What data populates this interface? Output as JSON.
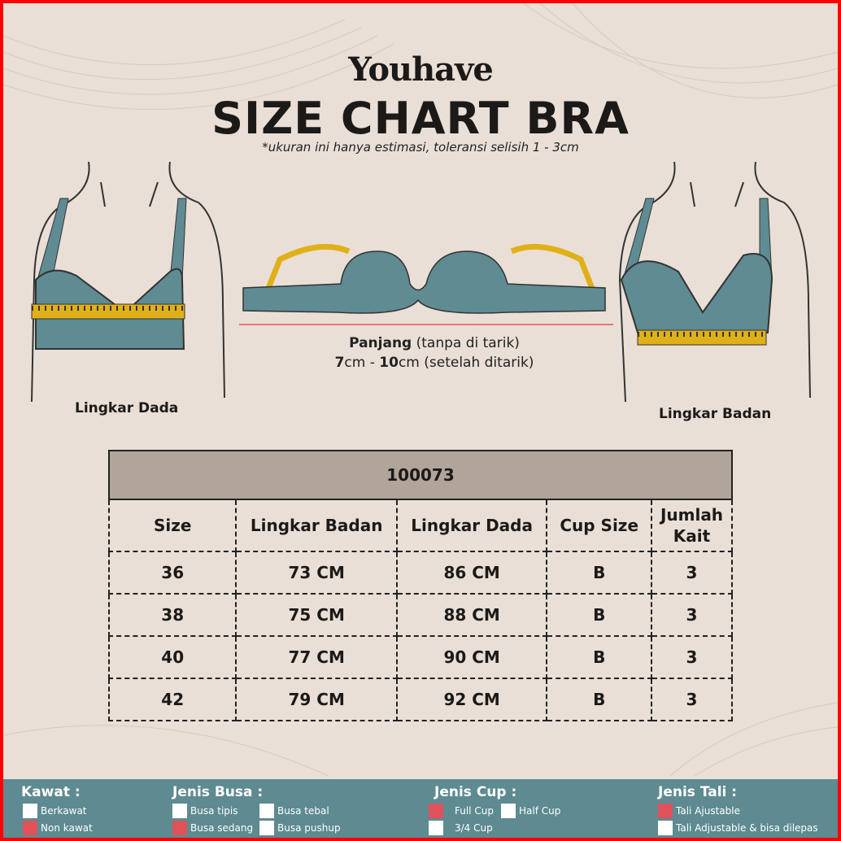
{
  "header": {
    "brand": "Youhave",
    "title": "SIZE CHART BRA",
    "note": "*ukuran ini hanya estimasi, toleransi selisih 1 - 3cm"
  },
  "illustrations": {
    "left_caption": "Lingkar Dada",
    "right_caption": "Lingkar Badan",
    "middle": {
      "line1_bold": "Panjang",
      "line1_rest": " (tanpa di tarik)",
      "line2_a": "7",
      "line2_b": "cm - ",
      "line2_c": "10",
      "line2_d": "cm (setelah ditarik)"
    }
  },
  "colors": {
    "background": "#e9dfd6",
    "bra": "#5f8b93",
    "tape": "#e0b018",
    "legend_bar": "#5e8a91",
    "checked": "#e0525a",
    "table_header": "#b1a59b",
    "frame": "#ff0000"
  },
  "table": {
    "product_code": "100073",
    "columns": [
      "Size",
      "Lingkar Badan",
      "Lingkar Dada",
      "Cup Size",
      "Jumlah Kait"
    ],
    "rows": [
      [
        "36",
        "73 CM",
        "86 CM",
        "B",
        "3"
      ],
      [
        "38",
        "75 CM",
        "88 CM",
        "B",
        "3"
      ],
      [
        "40",
        "77 CM",
        "90 CM",
        "B",
        "3"
      ],
      [
        "42",
        "79 CM",
        "92 CM",
        "B",
        "3"
      ]
    ]
  },
  "legend": {
    "kawat": {
      "title": "Kawat :",
      "items": [
        {
          "label": "Berkawat",
          "checked": false
        },
        {
          "label": "Non kawat",
          "checked": true
        }
      ]
    },
    "busa": {
      "title": "Jenis Busa :",
      "items": [
        {
          "label": "Busa tipis",
          "checked": false
        },
        {
          "label": "Busa tebal",
          "checked": false
        },
        {
          "label": "Busa sedang",
          "checked": true
        },
        {
          "label": "Busa pushup",
          "checked": false
        }
      ]
    },
    "cup": {
      "title": "Jenis Cup :",
      "items": [
        {
          "label": "Full Cup",
          "checked": true
        },
        {
          "label": "Half Cup",
          "checked": false
        },
        {
          "label": "3/4 Cup",
          "checked": false
        }
      ]
    },
    "tali": {
      "title": "Jenis Tali :",
      "items": [
        {
          "label": "Tali Ajustable",
          "checked": true
        },
        {
          "label": "Tali Adjustable & bisa dilepas",
          "checked": false
        }
      ]
    }
  }
}
